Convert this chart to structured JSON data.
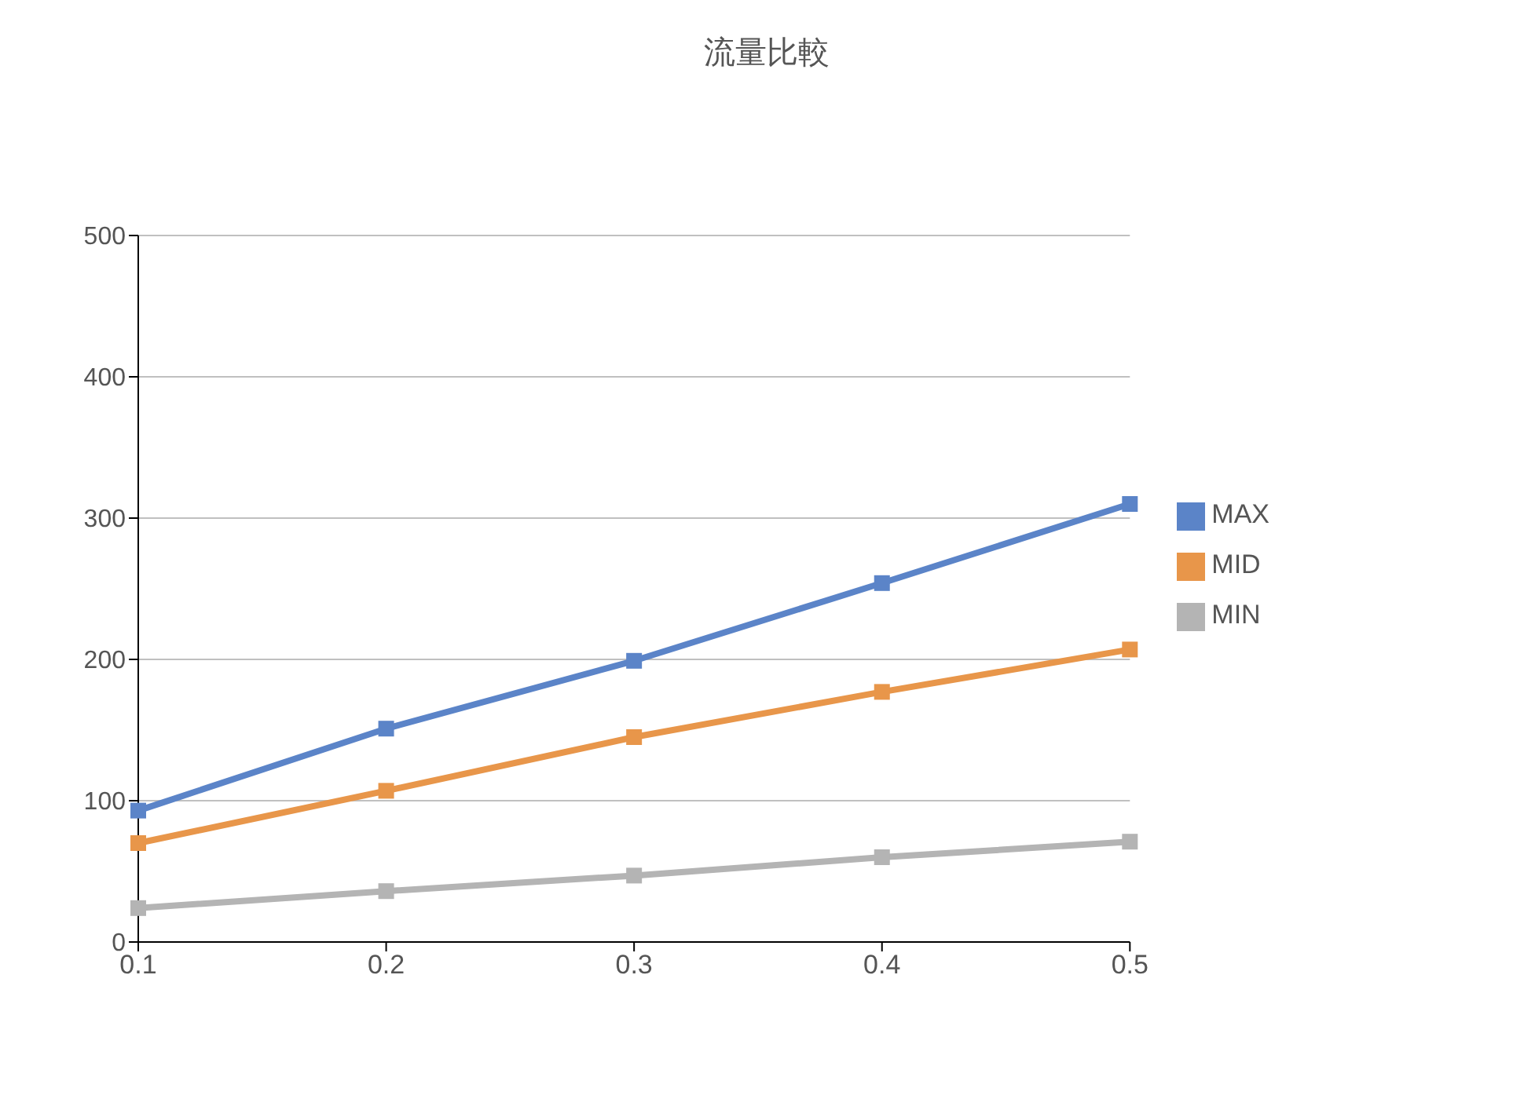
{
  "chart_data": {
    "type": "line",
    "title": "流量比較",
    "categories": [
      "0.1",
      "0.2",
      "0.3",
      "0.4",
      "0.5"
    ],
    "series": [
      {
        "name": "MIN",
        "color": "#b4b4b4",
        "values": [
          24,
          36,
          47,
          60,
          71
        ]
      },
      {
        "name": "MID",
        "color": "#e8964a",
        "values": [
          70,
          107,
          145,
          177,
          207
        ]
      },
      {
        "name": "MAX",
        "color": "#5b84c8",
        "values": [
          93,
          151,
          199,
          254,
          310
        ]
      }
    ],
    "ylim": [
      0,
      500
    ],
    "yticks": [
      0,
      100,
      200,
      300,
      400,
      500
    ],
    "grid": "y",
    "legend": "right",
    "marker": "square",
    "line_style": "solid"
  }
}
